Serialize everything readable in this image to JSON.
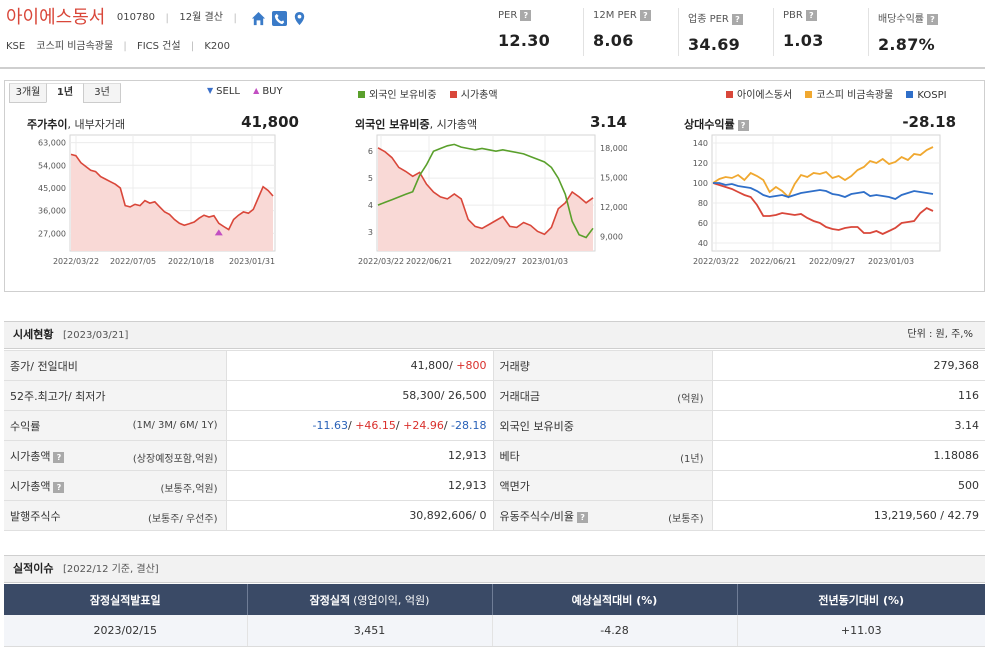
{
  "company": {
    "name": "아이에스동서",
    "code": "010780",
    "fiscal": "12월 결산",
    "market": "KSE",
    "sector_kospi": "코스피 비금속광물",
    "sector_fics": "FICS 건설",
    "index": "K200"
  },
  "metrics": [
    {
      "label": "PER",
      "value": "12.30"
    },
    {
      "label": "12M PER",
      "value": "8.06"
    },
    {
      "label": "업종 PER",
      "value": "34.69"
    },
    {
      "label": "PBR",
      "value": "1.03"
    },
    {
      "label": "배당수익률",
      "value": "2.87%"
    }
  ],
  "chart_panel": {
    "tabs": [
      "3개월",
      "1년",
      "3년"
    ],
    "active_tab": "1년",
    "legend_sell": "SELL",
    "legend_buy": "BUY",
    "legend_foreign": "외국인 보유비중",
    "legend_marketcap": "시가총액",
    "legend_company": "아이에스동서",
    "legend_sector": "코스피 비금속광물",
    "legend_kospi": "KOSPI",
    "colors": {
      "sell": "#3a6fc9",
      "buy": "#c24fc2",
      "foreign": "#5aa02c",
      "red": "#d9473a",
      "orange": "#f0a830",
      "blue": "#2f6fc9"
    }
  },
  "charts": {
    "price": {
      "title_bold": "주가추이",
      "title_sub": ", 내부자거래",
      "big": "41,800"
    },
    "foreign": {
      "title_bold": "외국인 보유비중",
      "title_sub": ", 시가총액",
      "big": "3.14"
    },
    "relative": {
      "title_bold": "상대수익률",
      "big": "-28.18"
    }
  },
  "chart_data": [
    {
      "type": "area",
      "title": "주가추이, 내부자거래",
      "ylim": [
        20000,
        66000
      ],
      "y_ticks": [
        "63,000",
        "54,000",
        "45,000",
        "36,000",
        "27,000"
      ],
      "x_ticks": [
        "2022/03/22",
        "2022/07/05",
        "2022/10/18",
        "2023/01/31"
      ],
      "series": [
        {
          "name": "아이에스동서",
          "values": [
            58300,
            57800,
            55000,
            53500,
            52000,
            51500,
            49500,
            48500,
            47500,
            46500,
            45000,
            38000,
            37500,
            38500,
            38000,
            40000,
            39000,
            39500,
            37500,
            35500,
            34500,
            32500,
            31000,
            30200,
            30800,
            31500,
            33000,
            34200,
            33500,
            34000,
            31000,
            29700,
            28500,
            32500,
            34200,
            35500,
            35000,
            36500,
            41000,
            45500,
            44000,
            41800
          ]
        }
      ],
      "insider_buy_marks": [
        {
          "x": "2022/12",
          "value": 27000
        }
      ]
    },
    {
      "type": "line",
      "title": "외국인 보유비중, 시가총액",
      "y_left_ticks": [
        "6",
        "5",
        "4",
        "3"
      ],
      "y_right_ticks": [
        "18,000",
        "15,000",
        "12,000",
        "9,000"
      ],
      "x_ticks": [
        "2022/03/22",
        "2022/06/21",
        "2022/09/27",
        "2023/01/03"
      ],
      "series": [
        {
          "name": "외국인 보유비중",
          "axis": "left",
          "values": [
            4.0,
            4.1,
            4.2,
            4.3,
            4.4,
            4.5,
            5.1,
            5.5,
            6.0,
            6.1,
            6.2,
            6.25,
            6.15,
            6.1,
            6.05,
            6.1,
            6.05,
            6.0,
            6.05,
            6.0,
            5.95,
            5.9,
            5.8,
            5.7,
            5.6,
            5.4,
            5.0,
            4.4,
            3.4,
            2.9,
            2.8,
            3.14
          ]
        },
        {
          "name": "시가총액",
          "axis": "right",
          "values": [
            18000,
            17600,
            17000,
            16000,
            15600,
            15100,
            15500,
            14300,
            13500,
            13000,
            12800,
            13300,
            12800,
            10700,
            10000,
            9800,
            10200,
            10600,
            11000,
            10000,
            9900,
            10400,
            10100,
            9500,
            9200,
            9900,
            11800,
            12400,
            13500,
            13000,
            12400,
            12913
          ]
        }
      ]
    },
    {
      "type": "line",
      "title": "상대수익률",
      "y_ticks": [
        "140",
        "120",
        "100",
        "80",
        "60",
        "40"
      ],
      "ylim": [
        32,
        148
      ],
      "x_ticks": [
        "2022/03/22",
        "2022/06/21",
        "2022/09/27",
        "2023/01/03"
      ],
      "series": [
        {
          "name": "아이에스동서",
          "values": [
            100,
            98,
            96,
            94,
            91,
            88,
            86,
            78,
            67,
            67,
            68,
            70,
            69,
            68,
            69,
            65,
            62,
            60,
            56,
            54,
            53,
            55,
            56,
            56,
            50,
            50,
            52,
            49,
            52,
            55,
            60,
            61,
            62,
            70,
            75,
            72
          ]
        },
        {
          "name": "코스피 비금속광물",
          "values": [
            100,
            104,
            106,
            105,
            108,
            103,
            110,
            107,
            103,
            91,
            96,
            92,
            86,
            99,
            108,
            106,
            110,
            109,
            111,
            105,
            107,
            103,
            107,
            113,
            116,
            122,
            120,
            124,
            119,
            121,
            126,
            123,
            129,
            128,
            133,
            136
          ]
        },
        {
          "name": "KOSPI",
          "values": [
            100,
            100,
            98,
            99,
            97,
            96,
            95,
            92,
            88,
            86,
            87,
            88,
            86,
            88,
            90,
            91,
            92,
            93,
            92,
            89,
            88,
            86,
            89,
            90,
            91,
            87,
            88,
            87,
            86,
            84,
            88,
            90,
            92,
            91,
            90,
            89
          ]
        }
      ]
    }
  ],
  "quote": {
    "section_title": "시세현황",
    "date": "[2023/03/21]",
    "unit": "단위 : 원, 주,%",
    "rows": [
      {
        "l1": "종가/ 전일대비",
        "v1_a": "41,800/ ",
        "v1_b": "+800",
        "l2": "거래량",
        "v2": "279,368"
      },
      {
        "l1": "52주.최고가/ 최저가",
        "v1": "58,300/ 26,500",
        "l2": "거래대금",
        "s2": "(억원)",
        "v2": "116"
      },
      {
        "l1": "수익률",
        "s1": "(1M/ 3M/ 6M/ 1Y)",
        "r1": "-11.63",
        "r2": "+46.15",
        "r3": "+24.96",
        "r4": "-28.18",
        "l2": "외국인 보유비중",
        "v2": "3.14"
      },
      {
        "l1": "시가총액",
        "s1": "(상장예정포함,억원)",
        "v1": "12,913",
        "l2": "베타",
        "s2": "(1년)",
        "v2": "1.18086"
      },
      {
        "l1": "시가총액",
        "s1": "(보통주,억원)",
        "v1": "12,913",
        "l2": "액면가",
        "v2": "500"
      },
      {
        "l1": "발행주식수",
        "s1": "(보통주/ 우선주)",
        "v1": "30,892,606/ 0",
        "l2": "유동주식수/비율",
        "s2": "(보통주)",
        "v2": "13,219,560 / 42.79"
      }
    ]
  },
  "earnings": {
    "section_title": "실적이슈",
    "date": "[2022/12 기준, 결산]",
    "headers": [
      "잠정실적발표일",
      "잠정실적",
      "(영업이익, 억원)",
      "예상실적대비 (%)",
      "전년동기대비 (%)"
    ],
    "row": [
      "2023/02/15",
      "3,451",
      "-4.28",
      "+11.03"
    ]
  }
}
